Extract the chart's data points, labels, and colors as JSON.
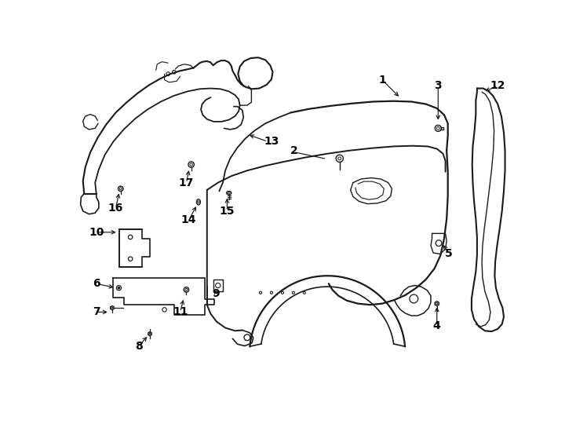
{
  "background": "#ffffff",
  "line_color": "#1a1a1a",
  "lw_main": 1.4,
  "lw_thin": 0.9,
  "label_positions": {
    "1": [
      510,
      48,
      510,
      75
    ],
    "2": [
      368,
      168,
      410,
      185
    ],
    "3": [
      602,
      62,
      606,
      118
    ],
    "4": [
      600,
      452,
      600,
      430
    ],
    "5": [
      618,
      332,
      600,
      312
    ],
    "6": [
      42,
      385,
      75,
      392
    ],
    "7": [
      42,
      432,
      68,
      432
    ],
    "8": [
      112,
      487,
      130,
      475
    ],
    "9": [
      240,
      400,
      240,
      388
    ],
    "10": [
      42,
      302,
      75,
      302
    ],
    "11": [
      178,
      428,
      185,
      410
    ],
    "12": [
      698,
      62,
      675,
      72
    ],
    "13": [
      322,
      152,
      295,
      140
    ],
    "14": [
      192,
      285,
      200,
      265
    ],
    "15": [
      258,
      268,
      258,
      248
    ],
    "16": [
      75,
      258,
      82,
      238
    ],
    "17": [
      190,
      222,
      195,
      202
    ]
  }
}
